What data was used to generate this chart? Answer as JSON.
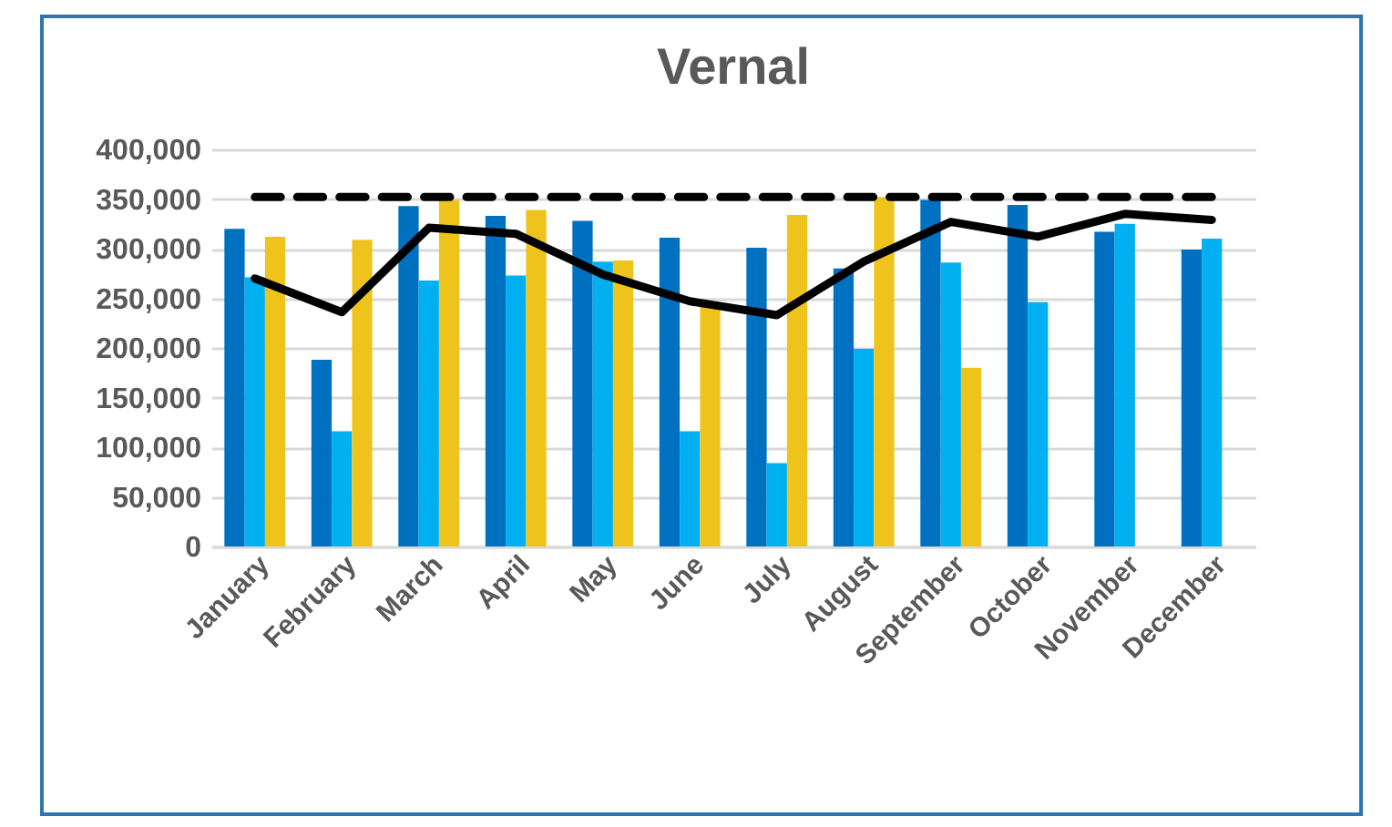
{
  "chart_data": {
    "type": "bar",
    "title": "Vernal",
    "categories": [
      "January",
      "February",
      "March",
      "April",
      "May",
      "June",
      "July",
      "August",
      "September",
      "October",
      "November",
      "December"
    ],
    "series": [
      {
        "color": "#0070c0",
        "values": [
          320000,
          188000,
          343000,
          333000,
          328000,
          311000,
          301000,
          280000,
          349000,
          344000,
          317000,
          299000
        ]
      },
      {
        "color": "#00b0f0",
        "values": [
          271000,
          116000,
          268000,
          273000,
          287000,
          116000,
          84000,
          199000,
          286000,
          246000,
          325000,
          310000
        ]
      },
      {
        "color": "#eec41c",
        "values": [
          312000,
          309000,
          349000,
          339000,
          288000,
          243000,
          334000,
          352000,
          180000,
          null,
          null,
          null
        ]
      },
      {
        "type": "line",
        "color": "#000000",
        "line_style": "solid",
        "values": [
          270000,
          236000,
          321000,
          315000,
          274000,
          247000,
          233000,
          287000,
          327000,
          312000,
          335000,
          329000
        ]
      },
      {
        "type": "line",
        "color": "#000000",
        "line_style": "dashed",
        "values": [
          352000,
          352000,
          352000,
          352000,
          352000,
          352000,
          352000,
          352000,
          352000,
          352000,
          352000,
          352000
        ]
      }
    ],
    "ylim": [
      0,
      400000
    ],
    "yticks": [
      0,
      {
        "value": 50000,
        "label": "50,000"
      },
      {
        "value": 100000,
        "label": "100,000"
      },
      {
        "value": 150000,
        "label": "150,000"
      },
      {
        "value": 200000,
        "label": "200,000"
      },
      {
        "value": 250000,
        "label": "250,000"
      },
      {
        "value": 300000,
        "label": "300,000"
      },
      {
        "value": 350000,
        "label": "350,000"
      },
      {
        "value": 400000,
        "label": "400,000"
      }
    ],
    "grid": "y",
    "legend": false
  }
}
